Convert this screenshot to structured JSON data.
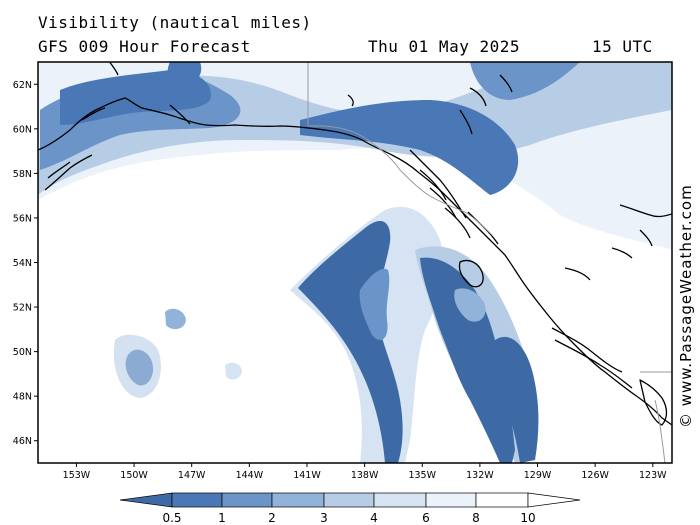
{
  "header": {
    "title": "Visibility (nautical miles)",
    "model": "GFS 009 Hour Forecast",
    "date": "Thu 01 May 2025",
    "time": "15 UTC"
  },
  "credit": "© www.PassageWeather.com",
  "map": {
    "lat_range": [
      45,
      63
    ],
    "lon_range": [
      -155,
      -122
    ],
    "lat_ticks": [
      {
        "v": 62,
        "label": "62N"
      },
      {
        "v": 60,
        "label": "60N"
      },
      {
        "v": 58,
        "label": "58N"
      },
      {
        "v": 56,
        "label": "56N"
      },
      {
        "v": 54,
        "label": "54N"
      },
      {
        "v": 52,
        "label": "52N"
      },
      {
        "v": 50,
        "label": "50N"
      },
      {
        "v": 48,
        "label": "48N"
      },
      {
        "v": 46,
        "label": "46N"
      }
    ],
    "lon_ticks": [
      {
        "v": -153,
        "label": "153W"
      },
      {
        "v": -150,
        "label": "150W"
      },
      {
        "v": -147,
        "label": "147W"
      },
      {
        "v": -144,
        "label": "144W"
      },
      {
        "v": -141,
        "label": "141W"
      },
      {
        "v": -138,
        "label": "138W"
      },
      {
        "v": -135,
        "label": "135W"
      },
      {
        "v": -132,
        "label": "132W"
      },
      {
        "v": -129,
        "label": "129W"
      },
      {
        "v": -126,
        "label": "126W"
      },
      {
        "v": -123,
        "label": "123W"
      }
    ],
    "colors": {
      "lt_0_5": "#3d6aa4",
      "0_5_1": "#4a78b6",
      "1_2": "#6b94c8",
      "2_3": "#92b3d9",
      "3_4": "#b7cde6",
      "4_6": "#d5e3f2",
      "6_8": "#ebf2fa",
      "gt_8": "#ffffff",
      "coast": "#000000",
      "border": "#9a9a9a"
    }
  },
  "legend": {
    "labels": [
      "0.5",
      "1",
      "2",
      "3",
      "4",
      "6",
      "8",
      "10"
    ]
  }
}
